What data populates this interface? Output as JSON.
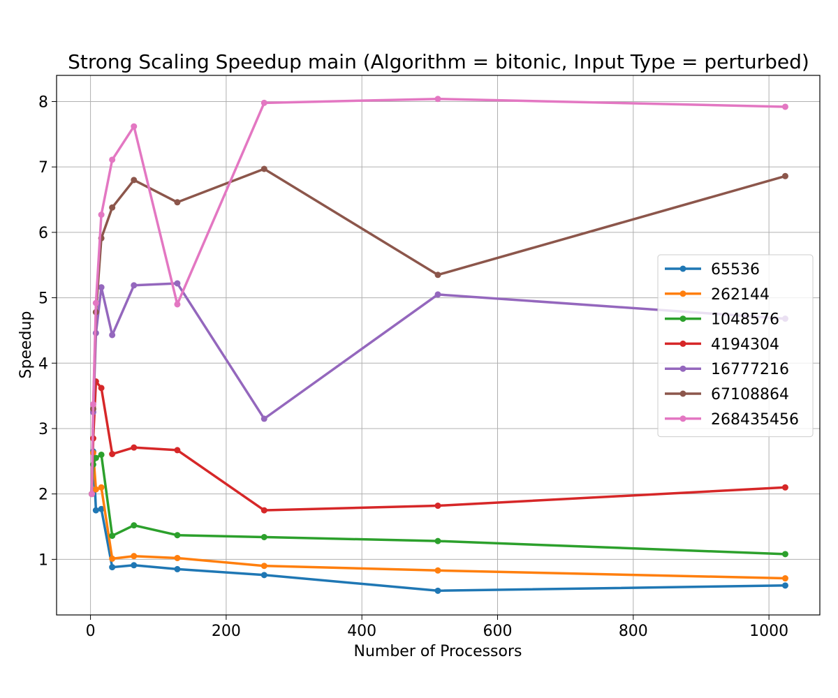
{
  "chart_data": {
    "type": "line",
    "title": "Strong Scaling Speedup main (Algorithm = bitonic, Input Type = perturbed)",
    "xlabel": "Number of Processors",
    "ylabel": "Speedup",
    "xlim": [
      -50,
      1075
    ],
    "ylim": [
      0.15,
      8.4
    ],
    "xticks": [
      0,
      200,
      400,
      600,
      800,
      1000
    ],
    "yticks": [
      1,
      2,
      3,
      4,
      5,
      6,
      7,
      8
    ],
    "grid": true,
    "legend_position": "center-right",
    "x": [
      2,
      4,
      8,
      16,
      32,
      64,
      128,
      256,
      512,
      1024
    ],
    "series": [
      {
        "name": "65536",
        "color": "#1f77b4",
        "values": [
          2.0,
          2.65,
          1.75,
          1.77,
          0.88,
          0.91,
          0.85,
          0.76,
          0.52,
          0.6
        ]
      },
      {
        "name": "262144",
        "color": "#ff7f0e",
        "values": [
          2.0,
          2.63,
          2.07,
          2.1,
          1.01,
          1.05,
          1.02,
          0.9,
          0.83,
          0.71
        ]
      },
      {
        "name": "1048576",
        "color": "#2ca02c",
        "values": [
          2.0,
          2.45,
          2.55,
          2.6,
          1.36,
          1.52,
          1.37,
          1.34,
          1.28,
          1.08
        ]
      },
      {
        "name": "4194304",
        "color": "#d62728",
        "values": [
          2.0,
          2.85,
          3.72,
          3.62,
          2.61,
          2.71,
          2.67,
          1.75,
          1.82,
          2.1
        ]
      },
      {
        "name": "16777216",
        "color": "#9467bd",
        "values": [
          2.0,
          3.25,
          4.46,
          5.16,
          4.43,
          5.19,
          5.22,
          3.15,
          5.05,
          4.68
        ]
      },
      {
        "name": "67108864",
        "color": "#8c564b",
        "values": [
          2.0,
          3.3,
          4.78,
          5.91,
          6.38,
          6.8,
          6.46,
          6.97,
          5.35,
          6.86
        ]
      },
      {
        "name": "268435456",
        "color": "#e377c2",
        "values": [
          2.0,
          3.37,
          4.92,
          6.27,
          7.11,
          7.62,
          4.9,
          7.98,
          8.04,
          7.92
        ]
      }
    ]
  }
}
